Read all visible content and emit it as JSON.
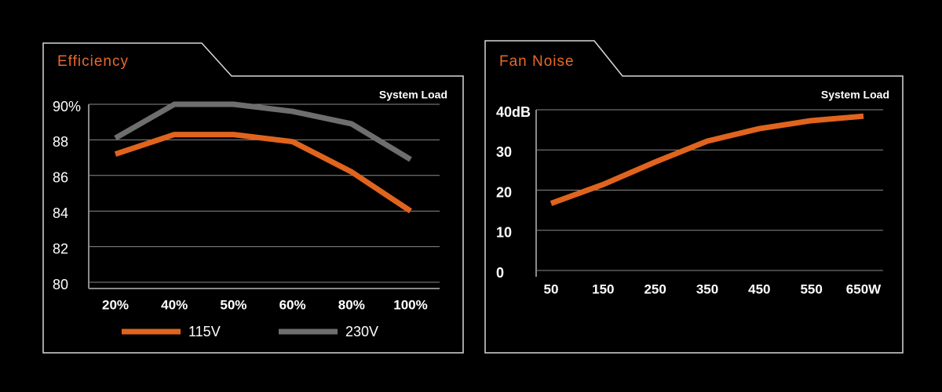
{
  "chart_data": [
    {
      "type": "line",
      "title": "Efficiency",
      "annotation": "System Load",
      "categories": [
        "20%",
        "40%",
        "50%",
        "60%",
        "80%",
        "100%"
      ],
      "series": [
        {
          "name": "115V",
          "color": "#e0641e",
          "values": [
            87.2,
            88.3,
            88.3,
            87.9,
            86.2,
            84.0
          ]
        },
        {
          "name": "230V",
          "color": "#6e6e6e",
          "values": [
            88.1,
            90.0,
            90.0,
            89.6,
            88.9,
            86.9
          ]
        }
      ],
      "ylim": [
        80,
        90
      ],
      "yticks": [
        80,
        82,
        84,
        86,
        88,
        {
          "value": 90,
          "label": "90%"
        }
      ],
      "grid": true,
      "legend": "bottom"
    },
    {
      "type": "line",
      "title": "Fan Noise",
      "annotation": "System Load",
      "x": [
        50,
        150,
        250,
        350,
        450,
        550,
        650
      ],
      "series": [
        {
          "color": "#e0641e",
          "values": [
            16.7,
            21.4,
            27.0,
            32.2,
            35.3,
            37.3,
            38.4
          ]
        }
      ],
      "xlim": [
        50,
        650
      ],
      "xticks": [
        50,
        150,
        250,
        350,
        450,
        550,
        {
          "value": 650,
          "label": "650W"
        }
      ],
      "ylim": [
        0,
        40
      ],
      "yticks": [
        0,
        10,
        20,
        30,
        {
          "value": 40,
          "label": "40dB"
        }
      ],
      "grid": true
    }
  ]
}
